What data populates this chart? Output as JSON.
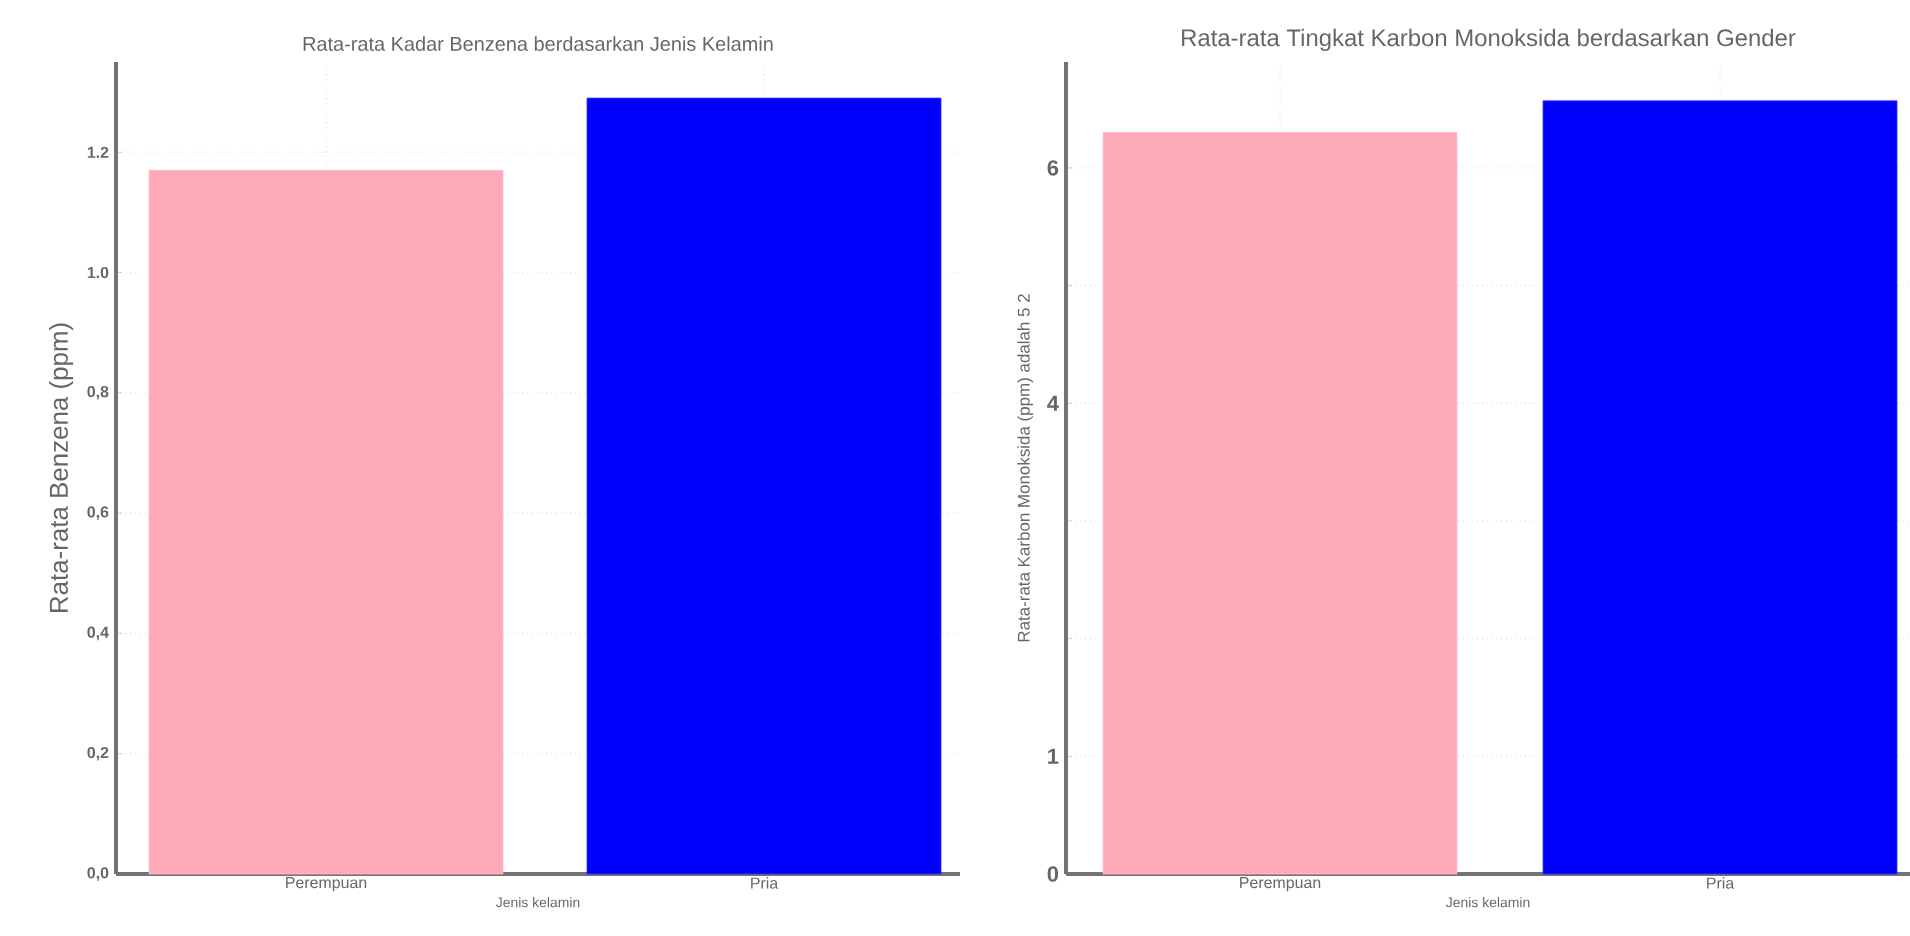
{
  "chart_data": [
    {
      "type": "bar",
      "title": "Rata-rata Kadar Benzena berdasarkan Jenis Kelamin",
      "xlabel": "Jenis kelamin",
      "ylabel": "Rata-rata Benzena (ppm)",
      "categories": [
        "Perempuan",
        "Pria"
      ],
      "values": [
        1.17,
        1.29
      ],
      "colors": [
        "#ffaab8",
        "#0000ff"
      ],
      "ylim": [
        0,
        1.35
      ],
      "yticks": [
        {
          "value": 0,
          "label": "0,0"
        },
        {
          "value": 0.2,
          "label": "0,2"
        },
        {
          "value": 0.4,
          "label": "0,4"
        },
        {
          "value": 0.6,
          "label": "0,6"
        },
        {
          "value": 0.8,
          "label": "0,8"
        },
        {
          "value": 1.0,
          "label": "1.0"
        },
        {
          "value": 1.2,
          "label": "1.2"
        }
      ],
      "grid": true
    },
    {
      "type": "bar",
      "title": "Rata-rata Tingkat Karbon Monoksida berdasarkan Gender",
      "xlabel": "Jenis kelamin",
      "ylabel": "Rata-rata Karbon Monoksida (ppm) adalah 5 2",
      "categories": [
        "Perempuan",
        "Pria"
      ],
      "values": [
        6.3,
        6.57
      ],
      "colors": [
        "#ffaab8",
        "#0000ff"
      ],
      "ylim": [
        0,
        6.9
      ],
      "yticks": [
        0,
        1,
        {
          "value": 2,
          "label": null
        },
        {
          "value": 3,
          "label": null
        },
        4,
        {
          "value": 5,
          "label": null
        },
        6
      ],
      "grid": true
    }
  ]
}
